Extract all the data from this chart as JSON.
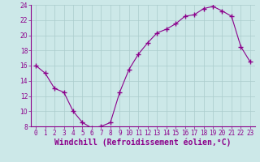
{
  "x": [
    0,
    1,
    2,
    3,
    4,
    5,
    6,
    7,
    8,
    9,
    10,
    11,
    12,
    13,
    14,
    15,
    16,
    17,
    18,
    19,
    20,
    21,
    22,
    23
  ],
  "y": [
    16,
    15,
    13,
    12.5,
    10,
    8.5,
    7.8,
    8,
    8.5,
    12.5,
    15.5,
    17.5,
    19,
    20.3,
    20.8,
    21.5,
    22.5,
    22.7,
    23.5,
    23.8,
    23.2,
    22.5,
    18.5,
    16.5
  ],
  "line_color": "#8b008b",
  "marker": "+",
  "marker_size": 4,
  "background_color": "#cce8e8",
  "grid_color": "#aacccc",
  "xlabel": "Windchill (Refroidissement éolien,°C)",
  "xlabel_color": "#8b008b",
  "ylim": [
    8,
    24
  ],
  "yticks": [
    8,
    10,
    12,
    14,
    16,
    18,
    20,
    22,
    24
  ],
  "xticks": [
    0,
    1,
    2,
    3,
    4,
    5,
    6,
    7,
    8,
    9,
    10,
    11,
    12,
    13,
    14,
    15,
    16,
    17,
    18,
    19,
    20,
    21,
    22,
    23
  ],
  "tick_label_color": "#8b008b",
  "tick_label_fontsize": 5.5,
  "xlabel_fontsize": 7,
  "spine_color": "#8b008b"
}
